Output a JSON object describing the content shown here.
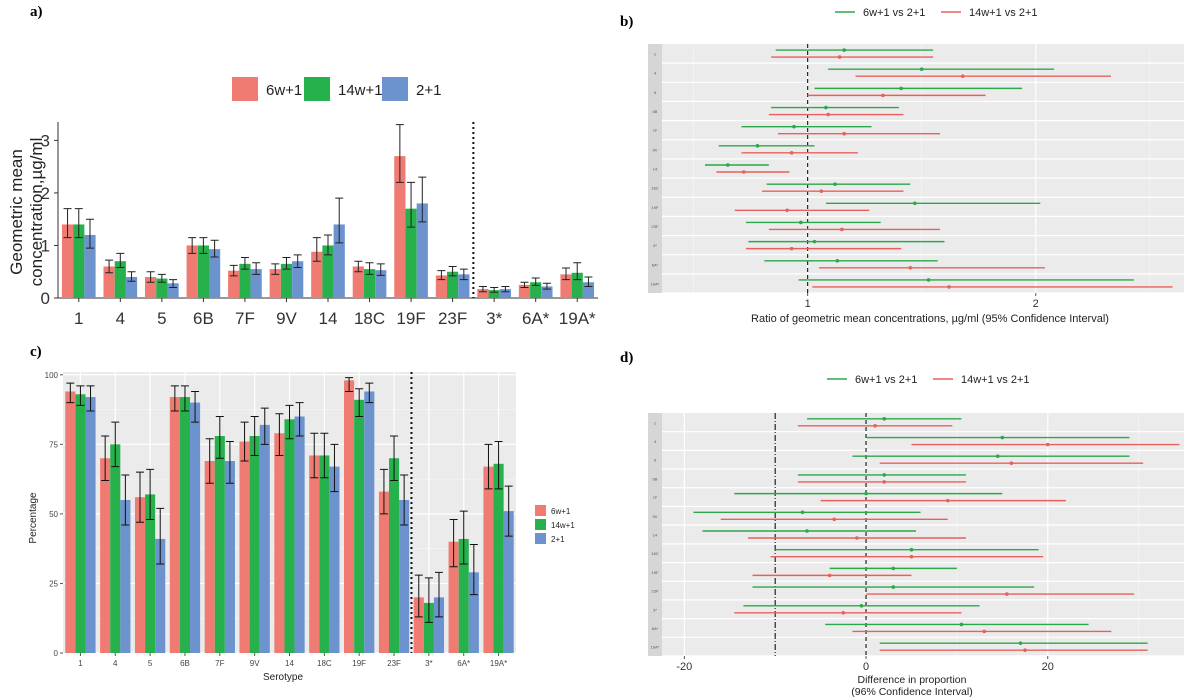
{
  "panels": {
    "a": "a)",
    "b": "b)",
    "c": "c)",
    "d": "d)"
  },
  "colors": {
    "red": "#f07b72",
    "green": "#27b14c",
    "blue": "#6d93cf",
    "line_red": "#e7605d",
    "line_green": "#2aa84a",
    "panel_bg": "#ebebeb"
  },
  "chart_data": [
    {
      "id": "a",
      "type": "bar",
      "title": "",
      "xlabel": "",
      "ylabel": "Geometric mean concentration,µg/ml",
      "ylabel_lines": [
        "Geometric mean",
        "concentration,µg/ml"
      ],
      "ylim": [
        0,
        3.35
      ],
      "yticks": [
        0,
        1,
        2,
        3
      ],
      "legend": "top",
      "categories": [
        "1",
        "4",
        "5",
        "6B",
        "7F",
        "9V",
        "14",
        "18C",
        "19F",
        "23F",
        "3*",
        "6A*",
        "19A*"
      ],
      "divider_after": "23F",
      "series": [
        {
          "name": "6w+1",
          "values": [
            1.4,
            0.6,
            0.4,
            1.0,
            0.52,
            0.55,
            0.88,
            0.6,
            2.7,
            0.43,
            0.17,
            0.25,
            0.45
          ],
          "err": [
            [
              1.15,
              1.7
            ],
            [
              0.48,
              0.72
            ],
            [
              0.3,
              0.5
            ],
            [
              0.85,
              1.15
            ],
            [
              0.42,
              0.62
            ],
            [
              0.45,
              0.65
            ],
            [
              0.7,
              1.15
            ],
            [
              0.5,
              0.7
            ],
            [
              2.2,
              3.3
            ],
            [
              0.35,
              0.52
            ],
            [
              0.12,
              0.22
            ],
            [
              0.2,
              0.3
            ],
            [
              0.35,
              0.57
            ]
          ]
        },
        {
          "name": "14w+1",
          "values": [
            1.4,
            0.7,
            0.37,
            1.0,
            0.65,
            0.65,
            1.0,
            0.55,
            1.7,
            0.5,
            0.15,
            0.3,
            0.48
          ],
          "err": [
            [
              1.15,
              1.7
            ],
            [
              0.58,
              0.85
            ],
            [
              0.3,
              0.45
            ],
            [
              0.85,
              1.15
            ],
            [
              0.55,
              0.77
            ],
            [
              0.55,
              0.77
            ],
            [
              0.82,
              1.2
            ],
            [
              0.45,
              0.67
            ],
            [
              1.35,
              2.2
            ],
            [
              0.42,
              0.6
            ],
            [
              0.11,
              0.2
            ],
            [
              0.24,
              0.38
            ],
            [
              0.35,
              0.67
            ]
          ]
        },
        {
          "name": "2+1",
          "values": [
            1.2,
            0.4,
            0.28,
            0.93,
            0.55,
            0.7,
            1.4,
            0.53,
            1.8,
            0.45,
            0.17,
            0.22,
            0.3
          ],
          "err": [
            [
              0.95,
              1.5
            ],
            [
              0.32,
              0.5
            ],
            [
              0.2,
              0.35
            ],
            [
              0.78,
              1.1
            ],
            [
              0.45,
              0.67
            ],
            [
              0.58,
              0.82
            ],
            [
              1.05,
              1.9
            ],
            [
              0.43,
              0.65
            ],
            [
              1.45,
              2.3
            ],
            [
              0.35,
              0.55
            ],
            [
              0.12,
              0.22
            ],
            [
              0.17,
              0.28
            ],
            [
              0.22,
              0.4
            ]
          ]
        }
      ]
    },
    {
      "id": "b",
      "type": "forest",
      "xlabel": "Ratio of geometric mean concentrations, µg/ml (95% Confidence Interval)",
      "xlim": [
        0.3,
        2.65
      ],
      "xticks": [
        1,
        2
      ],
      "ref_line": 1,
      "legend": "top",
      "rows": [
        "1",
        "4",
        "5",
        "6B",
        "7F",
        "9V",
        "14",
        "18C",
        "19F",
        "23F",
        "3*",
        "6A*",
        "19A*"
      ],
      "series": [
        {
          "name": "6w+1 vs 2+1",
          "est": [
            1.16,
            1.5,
            1.41,
            1.08,
            0.94,
            0.78,
            0.65,
            1.12,
            1.47,
            0.97,
            1.03,
            1.13,
            1.53
          ],
          "lo": [
            0.86,
            1.09,
            1.03,
            0.84,
            0.71,
            0.61,
            0.55,
            0.82,
            1.08,
            0.73,
            0.74,
            0.81,
            0.96
          ],
          "hi": [
            1.55,
            2.08,
            1.94,
            1.4,
            1.28,
            1.03,
            0.83,
            1.45,
            2.02,
            1.32,
            1.6,
            1.57,
            2.43
          ]
        },
        {
          "name": "14w+1 vs 2+1",
          "est": [
            1.14,
            1.68,
            1.33,
            1.09,
            1.16,
            0.93,
            0.72,
            1.06,
            0.91,
            1.15,
            0.93,
            1.45,
            1.62
          ],
          "lo": [
            0.84,
            1.21,
            1.0,
            0.83,
            0.87,
            0.71,
            0.6,
            0.8,
            0.68,
            0.83,
            0.73,
            1.05,
            1.02
          ],
          "hi": [
            1.55,
            2.33,
            1.78,
            1.42,
            1.58,
            1.22,
            0.92,
            1.42,
            1.27,
            1.58,
            1.41,
            2.04,
            2.6
          ]
        }
      ]
    },
    {
      "id": "c",
      "type": "bar",
      "xlabel": "Serotype",
      "ylabel": "Percentage",
      "ylim": [
        0,
        101
      ],
      "yticks": [
        0,
        25,
        50,
        75,
        100
      ],
      "legend": "right",
      "categories": [
        "1",
        "4",
        "5",
        "6B",
        "7F",
        "9V",
        "14",
        "18C",
        "19F",
        "23F",
        "3*",
        "6A*",
        "19A*"
      ],
      "divider_after": "23F",
      "series": [
        {
          "name": "6w+1",
          "values": [
            94,
            70,
            56,
            92,
            69,
            76,
            79,
            71,
            98,
            58,
            20,
            40,
            67
          ],
          "err": [
            [
              90,
              97
            ],
            [
              62,
              78
            ],
            [
              47,
              65
            ],
            [
              87,
              96
            ],
            [
              61,
              77
            ],
            [
              69,
              83
            ],
            [
              71,
              86
            ],
            [
              63,
              79
            ],
            [
              94,
              99
            ],
            [
              50,
              66
            ],
            [
              13,
              28
            ],
            [
              31,
              48
            ],
            [
              59,
              75
            ]
          ]
        },
        {
          "name": "14w+1",
          "values": [
            93,
            75,
            57,
            92,
            78,
            78,
            84,
            71,
            91,
            70,
            18,
            41,
            68
          ],
          "err": [
            [
              89,
              96
            ],
            [
              67,
              83
            ],
            [
              48,
              66
            ],
            [
              87,
              96
            ],
            [
              70,
              85
            ],
            [
              71,
              85
            ],
            [
              77,
              89
            ],
            [
              63,
              79
            ],
            [
              85,
              95
            ],
            [
              62,
              78
            ],
            [
              11,
              27
            ],
            [
              32,
              51
            ],
            [
              59,
              76
            ]
          ]
        },
        {
          "name": "2+1",
          "values": [
            92,
            55,
            41,
            90,
            69,
            82,
            85,
            67,
            94,
            55,
            20,
            29,
            51
          ],
          "err": [
            [
              87,
              96
            ],
            [
              46,
              64
            ],
            [
              32,
              52
            ],
            [
              83,
              94
            ],
            [
              61,
              76
            ],
            [
              75,
              88
            ],
            [
              78,
              90
            ],
            [
              58,
              75
            ],
            [
              90,
              97
            ],
            [
              46,
              64
            ],
            [
              13,
              29
            ],
            [
              21,
              39
            ],
            [
              42,
              60
            ]
          ]
        }
      ]
    },
    {
      "id": "d",
      "type": "forest",
      "xlabel": "Difference in proportion",
      "xlabel2": "(96% Confidence Interval)",
      "xlim": [
        -24,
        35
      ],
      "xticks": [
        -20,
        0,
        20
      ],
      "ref_line": 0,
      "ni_line": -10,
      "legend": "top",
      "rows": [
        "1",
        "4",
        "5",
        "6B",
        "7F",
        "9V",
        "14",
        "18C",
        "19F",
        "23F",
        "3*",
        "6A*",
        "19A*"
      ],
      "series": [
        {
          "name": "6w+1 vs 2+1",
          "est": [
            2,
            15,
            14.5,
            2,
            0,
            -7,
            -6.5,
            5,
            3,
            3,
            -0.5,
            10.5,
            17
          ],
          "lo": [
            -6.5,
            0,
            -1.5,
            -7.5,
            -14.5,
            -19,
            -18,
            -10,
            -4,
            -12.5,
            -13.5,
            -4.5,
            1.5
          ],
          "hi": [
            10.5,
            29,
            29,
            11,
            15,
            6,
            5.5,
            19,
            10,
            18.5,
            12.5,
            24.5,
            31
          ]
        },
        {
          "name": "14w+1 vs 2+1",
          "est": [
            1,
            20,
            16,
            2,
            9,
            -3.5,
            -1,
            5,
            -4,
            15.5,
            -2.5,
            13,
            17.5
          ],
          "lo": [
            -7.5,
            5,
            1.5,
            -7.5,
            -5,
            -16,
            -13,
            -10.5,
            -12.5,
            0,
            -14.5,
            -1.5,
            1.5
          ],
          "hi": [
            9.5,
            34.5,
            30.5,
            11,
            22,
            9,
            11,
            19.5,
            5,
            29.5,
            10.5,
            27,
            31
          ]
        }
      ]
    }
  ]
}
